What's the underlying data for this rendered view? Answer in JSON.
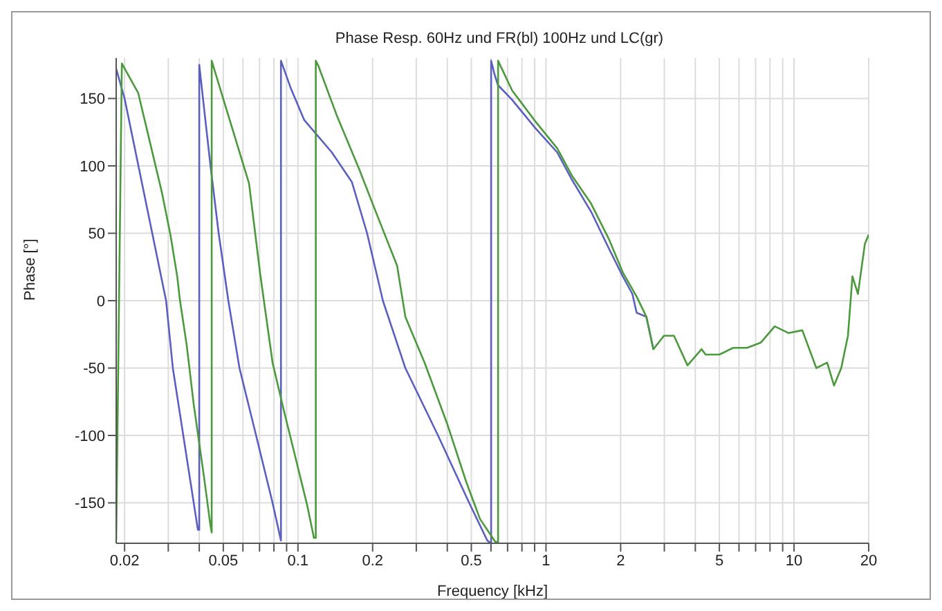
{
  "chart_data": {
    "type": "line",
    "title": "Phase Resp. 60Hz und FR(bl) 100Hz und LC(gr)",
    "xlabel": "Frequency [kHz]",
    "ylabel": "Phase [°]",
    "log": "x",
    "grid": true,
    "legend": false,
    "marker": "none",
    "line_style": "solid",
    "xlim": [
      0.0185,
      20
    ],
    "ylim": [
      -180,
      180
    ],
    "xticks": [
      0.02,
      {
        "value": 0.03,
        "label": null
      },
      {
        "value": 0.04,
        "label": null
      },
      0.05,
      {
        "value": 0.06,
        "label": null
      },
      {
        "value": 0.07,
        "label": null
      },
      {
        "value": 0.08,
        "label": null
      },
      {
        "value": 0.09,
        "label": null
      },
      0.1,
      0.2,
      {
        "value": 0.3,
        "label": null
      },
      {
        "value": 0.4,
        "label": null
      },
      0.5,
      {
        "value": 0.6,
        "label": null
      },
      {
        "value": 0.7,
        "label": null
      },
      {
        "value": 0.8,
        "label": null
      },
      {
        "value": 0.9,
        "label": null
      },
      1,
      2,
      {
        "value": 3,
        "label": null
      },
      {
        "value": 4,
        "label": null
      },
      5,
      {
        "value": 6,
        "label": null
      },
      {
        "value": 7,
        "label": null
      },
      {
        "value": 8,
        "label": null
      },
      {
        "value": 9,
        "label": null
      },
      10,
      20
    ],
    "yticks": [
      -150,
      -100,
      -50,
      0,
      50,
      100,
      150
    ],
    "series": [
      {
        "color": "#5a5fc0",
        "x": [
          0.0185,
          0.02,
          0.0294,
          0.0313,
          0.0395,
          0.04,
          0.04,
          0.0421,
          0.0444,
          0.0479,
          0.0524,
          0.0581,
          0.0678,
          0.079,
          0.0854,
          0.0854,
          0.0934,
          0.106,
          0.137,
          0.165,
          0.19,
          0.22,
          0.271,
          0.367,
          0.49,
          0.58,
          0.601,
          0.601,
          0.62,
          0.64,
          0.73,
          0.906,
          1.11,
          1.27,
          1.52,
          1.79,
          2.04,
          2.23,
          2.32,
          2.54,
          2.71
        ],
        "values": [
          172,
          150,
          0,
          -50,
          -170,
          -170,
          175,
          138,
          100,
          50,
          0,
          -50,
          -100,
          -150,
          -178,
          178,
          158,
          134,
          110,
          88,
          50,
          0,
          -50,
          -100,
          -150,
          -178,
          -180,
          178,
          168,
          160,
          149,
          128,
          110,
          90,
          66,
          39,
          18,
          5,
          -9,
          -12,
          -36
        ]
      },
      {
        "color": "#4a9a3c",
        "x": [
          0.0185,
          0.0195,
          0.0227,
          0.0249,
          0.0283,
          0.0306,
          0.0326,
          0.0334,
          0.0356,
          0.038,
          0.0416,
          0.0444,
          0.0449,
          0.0449,
          0.0461,
          0.0537,
          0.0635,
          0.0704,
          0.079,
          0.0876,
          0.097,
          0.109,
          0.116,
          0.118,
          0.118,
          0.121,
          0.143,
          0.177,
          0.21,
          0.251,
          0.271,
          0.324,
          0.399,
          0.478,
          0.542,
          0.625,
          0.641,
          0.641,
          0.73,
          0.906,
          1.11,
          1.27,
          1.52,
          1.79,
          2.04,
          2.32,
          2.54,
          2.71,
          2.99,
          3.28,
          3.72,
          4.24,
          4.4,
          5.0,
          5.69,
          6.47,
          7.36,
          8.36,
          9.51,
          10.8,
          12.3,
          13.6,
          14.5,
          15.5,
          16.5,
          17.2,
          18.1,
          19.3,
          20
        ],
        "values": [
          -178,
          176,
          154,
          123,
          80,
          49,
          18,
          1,
          -33,
          -77,
          -128,
          -167,
          -172,
          178,
          171,
          131,
          87,
          20,
          -46,
          -81,
          -114,
          -152,
          -176,
          -176,
          178,
          174,
          138,
          97,
          62,
          26,
          -12,
          -46,
          -91,
          -135,
          -162,
          -179,
          -179,
          178,
          156,
          133,
          113,
          93,
          72,
          46,
          21,
          3,
          -12,
          -36,
          -26,
          -26,
          -48,
          -36,
          -40,
          -40,
          -35,
          -35,
          -31,
          -19,
          -24,
          -22,
          -50,
          -46,
          -63,
          -50,
          -26,
          18,
          5,
          42,
          49
        ]
      }
    ]
  }
}
